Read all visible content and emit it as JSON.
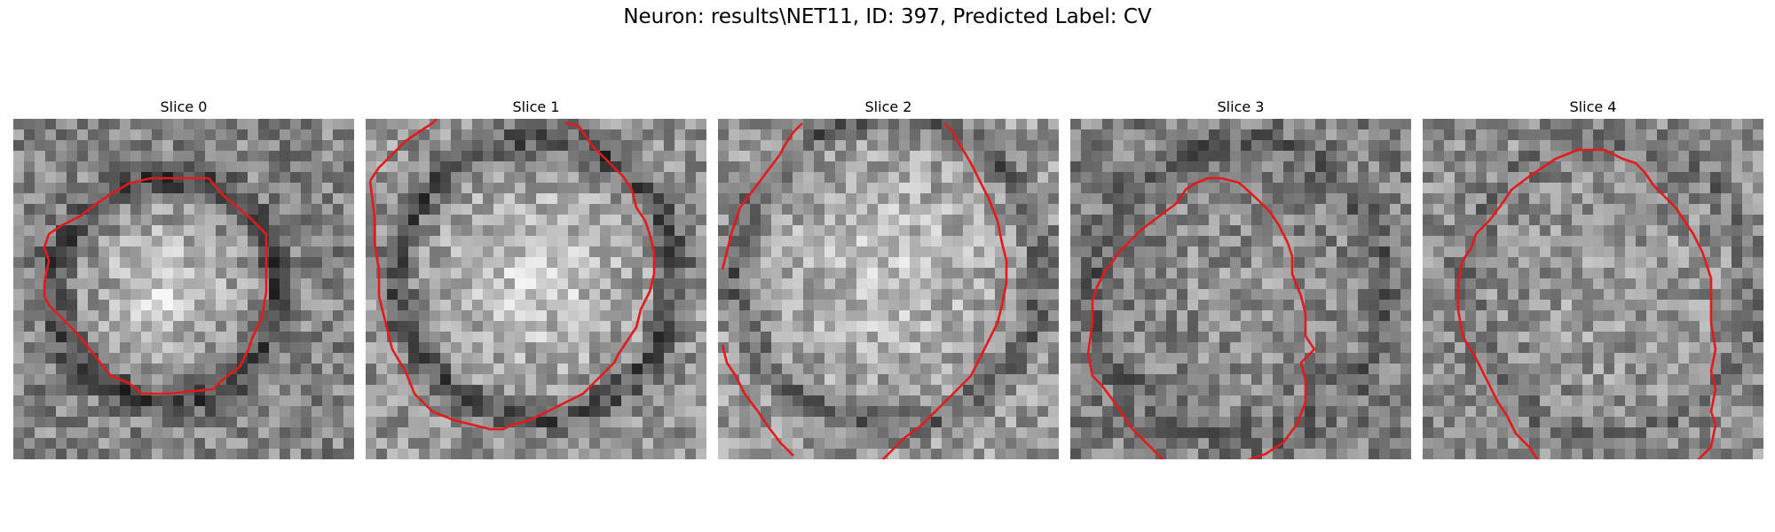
{
  "figure": {
    "title": "Neuron: results\\NET11, ID: 397, Predicted Label: CV"
  },
  "colors": {
    "contour": "#e31a1c",
    "background": "#ffffff"
  },
  "slices": [
    {
      "title": "Slice 0",
      "seed": 11,
      "base": 0.52,
      "center": [
        0.45,
        0.5
      ],
      "inner_radius": 0.3,
      "inner_gain": 0.32,
      "ring_gain": -0.28
    },
    {
      "title": "Slice 1",
      "seed": 23,
      "base": 0.58,
      "center": [
        0.5,
        0.47
      ],
      "inner_radius": 0.38,
      "inner_gain": 0.25,
      "ring_gain": -0.3
    },
    {
      "title": "Slice 2",
      "seed": 37,
      "base": 0.6,
      "center": [
        0.5,
        0.45
      ],
      "inner_radius": 0.42,
      "inner_gain": 0.18,
      "ring_gain": -0.22
    },
    {
      "title": "Slice 3",
      "seed": 41,
      "base": 0.5,
      "center": [
        0.5,
        0.5
      ],
      "inner_radius": 0.4,
      "inner_gain": 0.08,
      "ring_gain": -0.12
    },
    {
      "title": "Slice 4",
      "seed": 53,
      "base": 0.55,
      "center": [
        0.55,
        0.5
      ],
      "inner_radius": 0.4,
      "inner_gain": 0.08,
      "ring_gain": -0.1
    }
  ]
}
